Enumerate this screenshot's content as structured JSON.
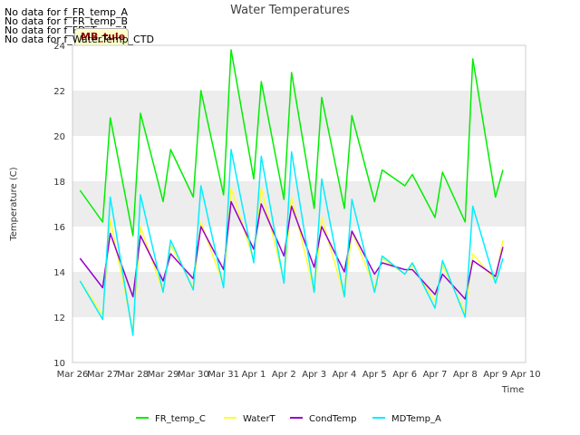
{
  "nodata_lines": [
    "No data for f_FR_temp_A",
    "No data for f_FR_temp_B",
    "No data for f_FD_Temp_1",
    "No data for f_WaterTemp_CTD"
  ],
  "badge_label": "MB_tule",
  "colors": {
    "FR_temp_C": "#00ee00",
    "WaterT": "#ffff33",
    "CondTemp": "#9900cc",
    "MDTemp_A": "#00eeff"
  },
  "chart_data": {
    "type": "line",
    "title": "Water Temperatures",
    "xlabel": "Time",
    "ylabel": "Temperature (C)",
    "ylim": [
      10,
      24
    ],
    "xlim": [
      "Mar 26",
      "Apr 10"
    ],
    "yticks": [
      10,
      12,
      14,
      16,
      18,
      20,
      22,
      24
    ],
    "xticks": [
      "Mar 26",
      "Mar 27",
      "Mar 28",
      "Mar 29",
      "Mar 30",
      "Mar 31",
      "Apr 1",
      "Apr 2",
      "Apr 3",
      "Apr 4",
      "Apr 5",
      "Apr 6",
      "Apr 7",
      "Apr 8",
      "Apr 9",
      "Apr 10"
    ],
    "grid": "horizontal bands",
    "legend_position": "bottom",
    "x_dates": [
      "Mar 26 06:00",
      "Mar 27 00:00",
      "Mar 27 06:00",
      "Mar 28 00:00",
      "Mar 28 06:00",
      "Mar 29 00:00",
      "Mar 29 06:00",
      "Mar 30 00:00",
      "Mar 30 06:00",
      "Mar 31 00:00",
      "Mar 31 06:00",
      "Apr 1 00:00",
      "Apr 1 06:00",
      "Apr 2 00:00",
      "Apr 2 06:00",
      "Apr 3 00:00",
      "Apr 3 06:00",
      "Apr 4 00:00",
      "Apr 4 06:00",
      "Apr 5 00:00",
      "Apr 5 06:00",
      "Apr 6 00:00",
      "Apr 6 06:00",
      "Apr 7 00:00",
      "Apr 7 06:00",
      "Apr 8 00:00",
      "Apr 8 06:00",
      "Apr 9 00:00",
      "Apr 9 06:00"
    ],
    "series": [
      {
        "name": "FR_temp_C",
        "values": [
          17.6,
          16.2,
          20.8,
          15.6,
          21.0,
          17.1,
          19.4,
          17.3,
          22.0,
          17.4,
          23.8,
          18.1,
          22.4,
          17.2,
          22.8,
          16.8,
          21.7,
          16.8,
          20.9,
          17.1,
          18.5,
          17.8,
          18.3,
          16.4,
          18.4,
          16.2,
          23.4,
          17.3,
          18.5
        ]
      },
      {
        "name": "WaterT",
        "values": [
          13.6,
          12.1,
          16.3,
          11.4,
          16.0,
          13.1,
          15.2,
          13.3,
          16.2,
          13.4,
          17.7,
          14.5,
          17.7,
          13.6,
          17.3,
          13.1,
          16.4,
          12.9,
          15.8,
          13.3,
          14.6,
          13.9,
          14.3,
          12.7,
          14.3,
          12.2,
          14.8,
          13.6,
          15.4
        ]
      },
      {
        "name": "CondTemp",
        "values": [
          14.6,
          13.3,
          15.7,
          12.9,
          15.6,
          13.6,
          14.8,
          13.7,
          16.0,
          14.1,
          17.1,
          15.0,
          17.0,
          14.7,
          16.9,
          14.2,
          16.0,
          14.0,
          15.8,
          13.9,
          14.4,
          14.1,
          14.1,
          13.0,
          13.9,
          12.8,
          14.5,
          13.8,
          15.1
        ]
      },
      {
        "name": "MDTemp_A",
        "values": [
          13.6,
          11.9,
          17.3,
          11.2,
          17.4,
          13.1,
          15.4,
          13.2,
          17.8,
          13.3,
          19.4,
          14.4,
          19.1,
          13.5,
          19.3,
          13.1,
          18.1,
          12.9,
          17.2,
          13.1,
          14.7,
          13.9,
          14.4,
          12.4,
          14.5,
          12.0,
          16.9,
          13.5,
          14.6
        ]
      }
    ]
  }
}
